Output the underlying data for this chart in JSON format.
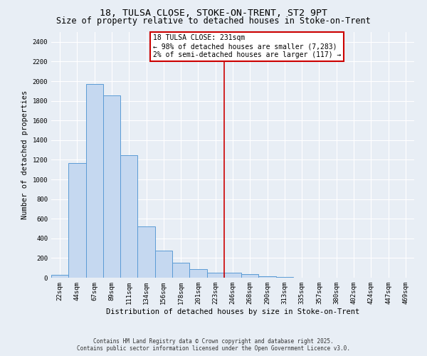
{
  "title1": "18, TULSA CLOSE, STOKE-ON-TRENT, ST2 9PT",
  "title2": "Size of property relative to detached houses in Stoke-on-Trent",
  "xlabel": "Distribution of detached houses by size in Stoke-on-Trent",
  "ylabel": "Number of detached properties",
  "categories": [
    "22sqm",
    "44sqm",
    "67sqm",
    "89sqm",
    "111sqm",
    "134sqm",
    "156sqm",
    "178sqm",
    "201sqm",
    "223sqm",
    "246sqm",
    "268sqm",
    "290sqm",
    "313sqm",
    "335sqm",
    "357sqm",
    "380sqm",
    "402sqm",
    "424sqm",
    "447sqm",
    "469sqm"
  ],
  "values": [
    30,
    1170,
    1970,
    1855,
    1245,
    525,
    278,
    150,
    88,
    48,
    48,
    38,
    15,
    8,
    0,
    3,
    0,
    0,
    0,
    2,
    0
  ],
  "bar_color": "#c5d8f0",
  "bar_edge_color": "#5b9bd5",
  "vline_x_index": 9.5,
  "vline_color": "#cc0000",
  "annotation_line1": "18 TULSA CLOSE: 231sqm",
  "annotation_line2": "← 98% of detached houses are smaller (7,283)",
  "annotation_line3": "2% of semi-detached houses are larger (117) →",
  "ylim": [
    0,
    2500
  ],
  "yticks": [
    0,
    200,
    400,
    600,
    800,
    1000,
    1200,
    1400,
    1600,
    1800,
    2000,
    2200,
    2400
  ],
  "footnote1": "Contains HM Land Registry data © Crown copyright and database right 2025.",
  "footnote2": "Contains public sector information licensed under the Open Government Licence v3.0.",
  "bg_color": "#e8eef5",
  "grid_color": "#ffffff",
  "title1_fontsize": 9.5,
  "title2_fontsize": 8.5,
  "axis_label_fontsize": 7.5,
  "tick_fontsize": 6.5,
  "annotation_fontsize": 7,
  "footnote_fontsize": 5.5
}
